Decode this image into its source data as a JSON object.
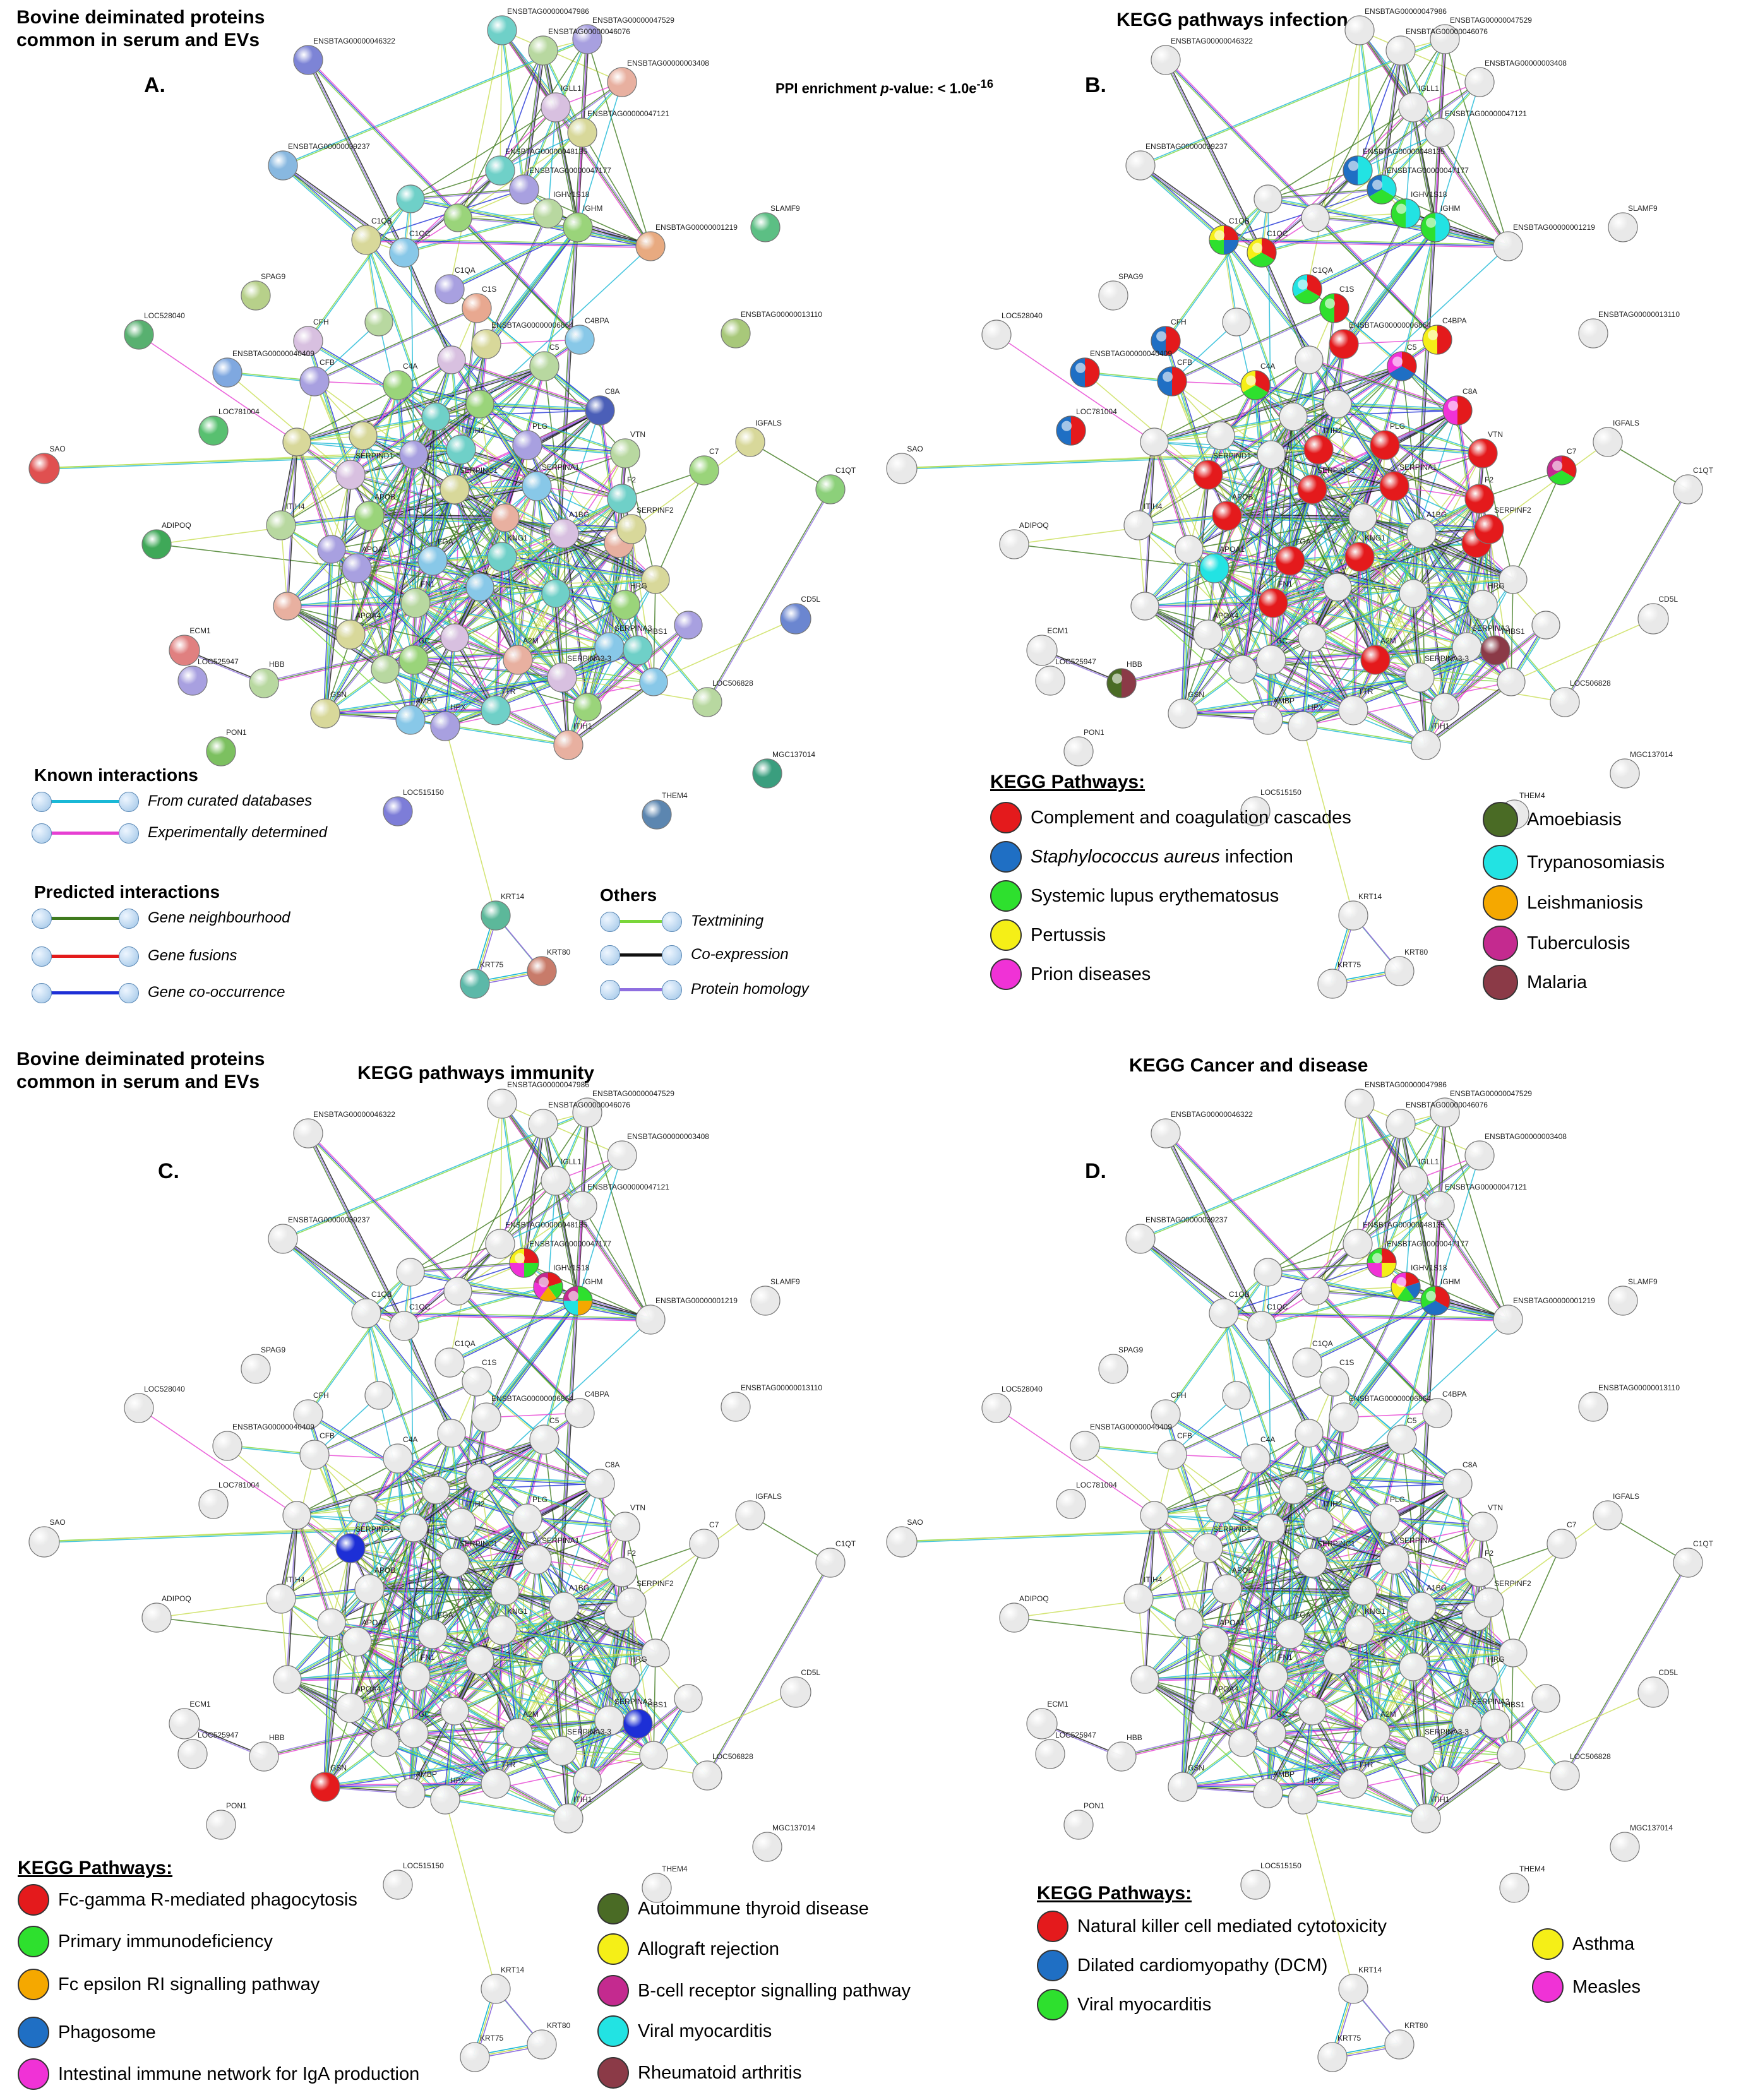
{
  "panels": [
    {
      "letter": "A.",
      "title_lines": [
        "Bovine deiminated proteins",
        "common in serum and EVs"
      ],
      "ppi_text": "PPI enrichment ",
      "ppi_italic": "p",
      "ppi_rest": "-value: < 1.0e",
      "ppi_exp": "-16"
    },
    {
      "letter": "B.",
      "title_lines": [
        "KEGG pathways infection"
      ]
    },
    {
      "letter": "C.",
      "title_lines": [
        "Bovine deiminated proteins",
        "common in serum and EVs"
      ],
      "subtitle": "KEGG pathways immunity"
    },
    {
      "letter": "D.",
      "title_lines": [
        "KEGG Cancer and disease"
      ]
    }
  ],
  "edge_legend": {
    "known_title": "Known interactions",
    "known": [
      {
        "label": "From curated databases",
        "color": "#19b8d6"
      },
      {
        "label": "Experimentally determined",
        "color": "#e63fd2"
      }
    ],
    "predicted_title": "Predicted interactions",
    "predicted": [
      {
        "label": "Gene neighbourhood",
        "color": "#3f7a1e"
      },
      {
        "label": "Gene fusions",
        "color": "#e31b1b"
      },
      {
        "label": "Gene co-occurrence",
        "color": "#1d2fd6"
      }
    ],
    "others_title": "Others",
    "others": [
      {
        "label": "Textmining",
        "color": "#7ad63a"
      },
      {
        "label": "Co-expression",
        "color": "#111111"
      },
      {
        "label": "Protein homology",
        "color": "#8f6fe0"
      }
    ]
  },
  "legend_b": {
    "title": "KEGG Pathways:",
    "left": [
      {
        "label": "Complement and coagulation cascades",
        "color": "#e41a1c"
      },
      {
        "label_italic": "Staphylococcus aureus",
        "label_rest": " infection",
        "color": "#1f6fc4"
      },
      {
        "label": "Systemic lupus erythematosus",
        "color": "#2ee02e"
      },
      {
        "label": "Pertussis",
        "color": "#f5ef17"
      },
      {
        "label": "Prion diseases",
        "color": "#f032d6"
      }
    ],
    "right": [
      {
        "label": "Amoebiasis",
        "color": "#4a6b25"
      },
      {
        "label": "Trypanosomiasis",
        "color": "#22e3e3"
      },
      {
        "label": "Leishmaniosis",
        "color": "#f5a800"
      },
      {
        "label": "Tuberculosis",
        "color": "#c42a8f"
      },
      {
        "label": "Malaria",
        "color": "#8b3a47"
      }
    ]
  },
  "legend_c": {
    "title": "KEGG Pathways:",
    "left": [
      {
        "label": "Fc-gamma R-mediated phagocytosis",
        "color": "#e41a1c"
      },
      {
        "label": "Primary immunodeficiency",
        "color": "#2ee02e"
      },
      {
        "label": "Fc epsilon RI signalling pathway",
        "color": "#f5a800"
      },
      {
        "label": "Phagosome",
        "color": "#1f6fc4"
      },
      {
        "label": "Intestinal immune network for IgA production",
        "color": "#f032d6"
      }
    ],
    "right": [
      {
        "label": "Autoimmune thyroid disease",
        "color": "#4a6b25"
      },
      {
        "label": "Allograft rejection",
        "color": "#f5ef17"
      },
      {
        "label": "B-cell receptor signalling pathway",
        "color": "#c42a8f"
      },
      {
        "label": "Viral myocarditis",
        "color": "#22e3e3"
      },
      {
        "label": "Rheumatoid arthritis",
        "color": "#8b3a47"
      }
    ]
  },
  "legend_d": {
    "title": "KEGG Pathways:",
    "left": [
      {
        "label": "Natural killer cell mediated cytotoxicity",
        "color": "#e41a1c"
      },
      {
        "label": "Dilated cardiomyopathy (DCM)",
        "color": "#1f6fc4"
      },
      {
        "label": "Viral myocarditis",
        "color": "#2ee02e"
      }
    ],
    "right": [
      {
        "label": "Asthma",
        "color": "#f5ef17"
      },
      {
        "label": "Measles",
        "color": "#f032d6"
      }
    ]
  },
  "network": {
    "proteins": [
      "ENSBTAG00000047986",
      "ENSBTAG00000047529",
      "ENSBTAG00000046076",
      "ENSBTAG00000046322",
      "ENSBTAG00000003408",
      "IGLL1",
      "ENSBTAG00000047121",
      "ENSBTAG00000039237",
      "ENSBTAG00000048135",
      "ENSBTAG00000047177",
      "IGHV1S18",
      "IGHM",
      "ENSBTAG00000001219",
      "SLAMF9",
      "C1QB",
      "C1QC",
      "SPAG9",
      "C1QA",
      "C1S",
      "ENSBTAG00000013110",
      "LOC528040",
      "CFH",
      "ENSBTAG00000006864",
      "C4BPA",
      "ENSBTAG00000040409",
      "CFB",
      "C5",
      "C4A",
      "LOC781004",
      "C8A",
      "IGFALS",
      "SAO",
      "ITIH2",
      "PLG",
      "VTN",
      "C7",
      "C1QT",
      "SERPIND1",
      "SERPINC1",
      "SERPINA1",
      "F2",
      "ADIPOQ",
      "ITIH4",
      "APOB",
      "FGB",
      "A1BG",
      "SERPINF2",
      "FGA",
      "KNG1",
      "APOA1",
      "FN1",
      "HRG",
      "CD5L",
      "ECM1",
      "APOA4",
      "SERPINA3",
      "THBS1",
      "LOC525947",
      "HBB",
      "GC",
      "A2M",
      "SERPINA3-3",
      "GSN",
      "AMBP",
      "TTR",
      "HPX",
      "LOC506828",
      "PON1",
      "ITIH1",
      "MGC137014",
      "LOC515150",
      "THEM4",
      "KRT14",
      "KRT75",
      "KRT80"
    ]
  }
}
